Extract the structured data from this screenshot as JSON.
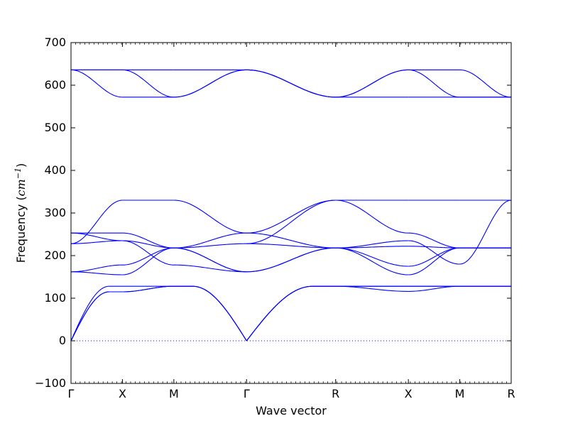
{
  "chart_data": {
    "type": "line",
    "xlabel": "Wave vector",
    "ylabel": "Frequency",
    "ylabel_unit": "cm",
    "ylabel_unit_exp": "−1",
    "ylim": [
      -100,
      700
    ],
    "grid": false,
    "yticks": [
      -100,
      0,
      100,
      200,
      300,
      400,
      500,
      600,
      700
    ],
    "ytick_labels": [
      "−100",
      "0",
      "100",
      "200",
      "300",
      "400",
      "500",
      "600",
      "700"
    ],
    "x_ticks": [
      {
        "position": 0.0,
        "label": "Γ"
      },
      {
        "position": 0.5,
        "label": "X"
      },
      {
        "position": 1.0,
        "label": "M"
      },
      {
        "position": 1.7071,
        "label": "Γ"
      },
      {
        "position": 2.5731,
        "label": "R"
      },
      {
        "position": 3.2802,
        "label": "X"
      },
      {
        "position": 3.7802,
        "label": "M"
      },
      {
        "position": 4.2802,
        "label": "R"
      }
    ],
    "xlim": [
      0,
      4.2802
    ],
    "zero_line": {
      "y": 0,
      "style": "dotted",
      "color": "#0000ff"
    },
    "line_color": "#0000ff",
    "segments": [
      {
        "from": "Γ",
        "to": "X",
        "x0": 0.0,
        "x1": 0.5,
        "bands": [
          [
            0,
            115
          ],
          [
            0,
            115
          ],
          [
            0,
            128
          ],
          [
            162,
            155
          ],
          [
            162,
            178
          ],
          [
            228,
            235
          ],
          [
            228,
            330
          ],
          [
            253,
            253
          ],
          [
            253,
            235
          ],
          [
            636,
            572
          ],
          [
            636,
            636
          ],
          [
            636,
            636
          ]
        ]
      },
      {
        "from": "X",
        "to": "M",
        "x0": 0.5,
        "x1": 1.0,
        "bands": [
          [
            115,
            128
          ],
          [
            115,
            128
          ],
          [
            128,
            128
          ],
          [
            155,
            218
          ],
          [
            178,
            218
          ],
          [
            235,
            218
          ],
          [
            330,
            330
          ],
          [
            253,
            218
          ],
          [
            235,
            178
          ],
          [
            572,
            572
          ],
          [
            636,
            572
          ],
          [
            636,
            636
          ]
        ]
      },
      {
        "from": "M",
        "to": "Γ",
        "x0": 1.0,
        "x1": 1.7071,
        "bands": [
          [
            128,
            0
          ],
          [
            128,
            0
          ],
          [
            128,
            0
          ],
          [
            218,
            162
          ],
          [
            218,
            162
          ],
          [
            218,
            228
          ],
          [
            330,
            253
          ],
          [
            218,
            253
          ],
          [
            178,
            162
          ],
          [
            572,
            636
          ],
          [
            572,
            636
          ],
          [
            636,
            636
          ]
        ]
      },
      {
        "from": "Γ",
        "to": "R",
        "x0": 1.7071,
        "x1": 2.5731,
        "bands": [
          [
            0,
            128
          ],
          [
            0,
            128
          ],
          [
            0,
            128
          ],
          [
            162,
            218
          ],
          [
            162,
            218
          ],
          [
            228,
            330
          ],
          [
            253,
            330
          ],
          [
            253,
            218
          ],
          [
            228,
            218
          ],
          [
            636,
            572
          ],
          [
            636,
            572
          ],
          [
            636,
            572
          ]
        ]
      },
      {
        "from": "R",
        "to": "X",
        "x0": 2.5731,
        "x1": 3.2802,
        "bands": [
          [
            128,
            116
          ],
          [
            128,
            128
          ],
          [
            128,
            128
          ],
          [
            218,
            155
          ],
          [
            218,
            175
          ],
          [
            218,
            222
          ],
          [
            330,
            330
          ],
          [
            330,
            253
          ],
          [
            218,
            235
          ],
          [
            572,
            572
          ],
          [
            572,
            636
          ],
          [
            572,
            636
          ]
        ]
      },
      {
        "from": "X",
        "to": "M",
        "x0": 3.2802,
        "x1": 3.7802,
        "bands": [
          [
            116,
            128
          ],
          [
            128,
            128
          ],
          [
            128,
            128
          ],
          [
            155,
            218
          ],
          [
            175,
            218
          ],
          [
            222,
            218
          ],
          [
            330,
            330
          ],
          [
            253,
            218
          ],
          [
            235,
            180
          ],
          [
            572,
            572
          ],
          [
            636,
            572
          ],
          [
            636,
            636
          ]
        ]
      },
      {
        "from": "M",
        "to": "R",
        "x0": 3.7802,
        "x1": 4.2802,
        "bands": [
          [
            128,
            128
          ],
          [
            128,
            128
          ],
          [
            128,
            128
          ],
          [
            218,
            218
          ],
          [
            218,
            218
          ],
          [
            218,
            218
          ],
          [
            330,
            330
          ],
          [
            218,
            218
          ],
          [
            180,
            330
          ],
          [
            572,
            572
          ],
          [
            572,
            572
          ],
          [
            636,
            572
          ]
        ]
      }
    ]
  }
}
